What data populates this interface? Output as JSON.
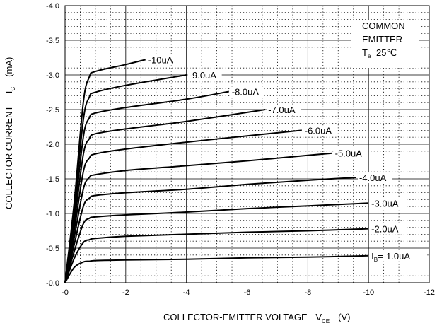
{
  "chart_data": {
    "type": "line",
    "xlabel": "COLLECTOR-EMITTER VOLTAGE",
    "xlabel_symbol": "V",
    "xlabel_symbol_sub": "CE",
    "xlabel_unit": "(V)",
    "ylabel": "COLLECTOR CURRENT",
    "ylabel_symbol": "I",
    "ylabel_symbol_sub": "C",
    "ylabel_unit": "(mA)",
    "xlim": [
      0,
      -12
    ],
    "ylim": [
      0,
      -4.0
    ],
    "x_ticks": [
      "-0",
      "-2",
      "-4",
      "-6",
      "-8",
      "-10",
      "-12"
    ],
    "y_ticks": [
      "-0.0",
      "-0.5",
      "-1.0",
      "-1.5",
      "-2.0",
      "-2.5",
      "-3.0",
      "-3.5",
      "-4.0"
    ],
    "grid": "dotted minor, solid major",
    "annotation": {
      "line1": "COMMON",
      "line2": "EMITTER",
      "temp_prefix": "T",
      "temp_sub": "a",
      "temp_value": "=25℃"
    },
    "series": [
      {
        "name": "-1.0uA",
        "label_prefix": "I",
        "label_sub": "B",
        "label_text": "=-1.0uA",
        "x": [
          0,
          -0.3,
          -0.6,
          -0.8,
          -1,
          -2,
          -4,
          -6,
          -8,
          -10
        ],
        "y": [
          0,
          -0.22,
          -0.3,
          -0.31,
          -0.32,
          -0.33,
          -0.34,
          -0.36,
          -0.37,
          -0.39
        ]
      },
      {
        "name": "-2.0uA",
        "x": [
          0,
          -0.3,
          -0.6,
          -0.8,
          -1,
          -2,
          -4,
          -6,
          -8,
          -10
        ],
        "y": [
          0,
          -0.35,
          -0.58,
          -0.62,
          -0.64,
          -0.67,
          -0.7,
          -0.73,
          -0.75,
          -0.78
        ]
      },
      {
        "name": "-3.0uA",
        "x": [
          0,
          -0.3,
          -0.6,
          -0.8,
          -1,
          -2,
          -4,
          -6,
          -8,
          -10
        ],
        "y": [
          0,
          -0.45,
          -0.85,
          -0.93,
          -0.95,
          -0.98,
          -1.02,
          -1.07,
          -1.11,
          -1.15
        ]
      },
      {
        "name": "-4.0uA",
        "x": [
          0,
          -0.3,
          -0.6,
          -0.8,
          -1,
          -2,
          -4,
          -6,
          -8,
          -9.6
        ],
        "y": [
          0,
          -0.55,
          -1.1,
          -1.22,
          -1.26,
          -1.3,
          -1.35,
          -1.42,
          -1.48,
          -1.52
        ]
      },
      {
        "name": "-5.0uA",
        "x": [
          0,
          -0.3,
          -0.6,
          -0.8,
          -1,
          -2,
          -4,
          -6,
          -8,
          -8.8
        ],
        "y": [
          0,
          -0.65,
          -1.35,
          -1.52,
          -1.56,
          -1.62,
          -1.69,
          -1.76,
          -1.84,
          -1.87
        ]
      },
      {
        "name": "-6.0uA",
        "x": [
          0,
          -0.3,
          -0.6,
          -0.8,
          -1,
          -2,
          -4,
          -6,
          -7.8
        ],
        "y": [
          0,
          -0.75,
          -1.6,
          -1.8,
          -1.86,
          -1.93,
          -2.03,
          -2.12,
          -2.2
        ]
      },
      {
        "name": "-7.0uA",
        "x": [
          0,
          -0.3,
          -0.6,
          -0.8,
          -1,
          -2,
          -4,
          -6.6
        ],
        "y": [
          0,
          -0.85,
          -1.85,
          -2.08,
          -2.15,
          -2.22,
          -2.33,
          -2.5
        ]
      },
      {
        "name": "-8.0uA",
        "x": [
          0,
          -0.3,
          -0.6,
          -0.8,
          -1,
          -2,
          -4,
          -5.4
        ],
        "y": [
          0,
          -0.95,
          -2.1,
          -2.38,
          -2.45,
          -2.53,
          -2.65,
          -2.76
        ]
      },
      {
        "name": "-9.0uA",
        "x": [
          0,
          -0.3,
          -0.6,
          -0.8,
          -1,
          -2,
          -4
        ],
        "y": [
          0,
          -1.05,
          -2.35,
          -2.68,
          -2.75,
          -2.85,
          -3.0
        ]
      },
      {
        "name": "-10uA",
        "x": [
          0,
          -0.3,
          -0.6,
          -0.8,
          -1,
          -2,
          -2.65
        ],
        "y": [
          0,
          -1.15,
          -2.6,
          -2.97,
          -3.05,
          -3.15,
          -3.22
        ]
      }
    ]
  }
}
